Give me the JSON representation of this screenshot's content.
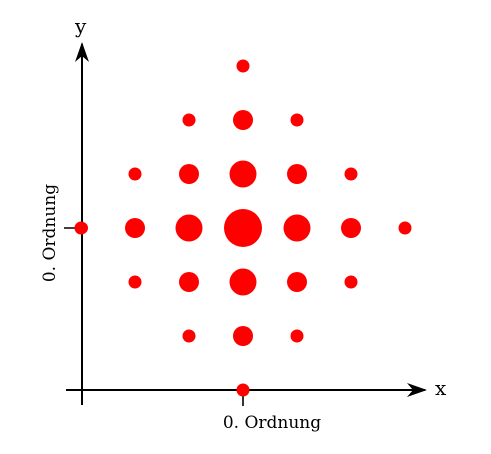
{
  "labels": {
    "x_axis": "x",
    "y_axis": "y",
    "order_x": "0. Ordnung",
    "order_y": "0. Ordnung"
  },
  "colors": {
    "spot": "#ff0000",
    "axis": "#000000"
  },
  "spots": [
    {
      "i": 0,
      "j": 3,
      "level": 1
    },
    {
      "i": -1,
      "j": 2,
      "level": 1
    },
    {
      "i": 0,
      "j": 2,
      "level": 3
    },
    {
      "i": 1,
      "j": 2,
      "level": 1
    },
    {
      "i": -2,
      "j": 1,
      "level": 1
    },
    {
      "i": -1,
      "j": 1,
      "level": 3
    },
    {
      "i": 0,
      "j": 1,
      "level": 5
    },
    {
      "i": 1,
      "j": 1,
      "level": 3
    },
    {
      "i": 2,
      "j": 1,
      "level": 1
    },
    {
      "i": -3,
      "j": 0,
      "level": 1
    },
    {
      "i": -2,
      "j": 0,
      "level": 3
    },
    {
      "i": -1,
      "j": 0,
      "level": 5
    },
    {
      "i": 0,
      "j": 0,
      "level": 7
    },
    {
      "i": 1,
      "j": 0,
      "level": 5
    },
    {
      "i": 2,
      "j": 0,
      "level": 3
    },
    {
      "i": 3,
      "j": 0,
      "level": 1
    },
    {
      "i": -2,
      "j": -1,
      "level": 1
    },
    {
      "i": -1,
      "j": -1,
      "level": 3
    },
    {
      "i": 0,
      "j": -1,
      "level": 5
    },
    {
      "i": 1,
      "j": -1,
      "level": 3
    },
    {
      "i": 2,
      "j": -1,
      "level": 1
    },
    {
      "i": -1,
      "j": -2,
      "level": 1
    },
    {
      "i": 0,
      "j": -2,
      "level": 3
    },
    {
      "i": 1,
      "j": -2,
      "level": 1
    },
    {
      "i": 0,
      "j": -3,
      "level": 1
    }
  ]
}
